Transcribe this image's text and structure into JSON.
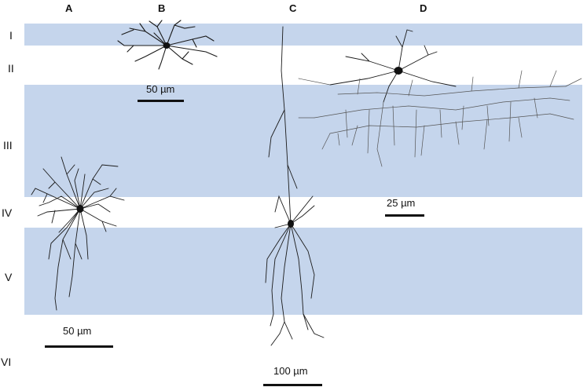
{
  "columns": [
    "A",
    "B",
    "C",
    "D"
  ],
  "layers": [
    "I",
    "II",
    "III",
    "IV",
    "V",
    "VI"
  ],
  "scale_bars": {
    "b": "50 µm",
    "a": "50 µm",
    "d": "25 µm",
    "c": "100 µm"
  },
  "colors": {
    "band": "#c5d5ec",
    "neuron": "#1a1a1a"
  }
}
